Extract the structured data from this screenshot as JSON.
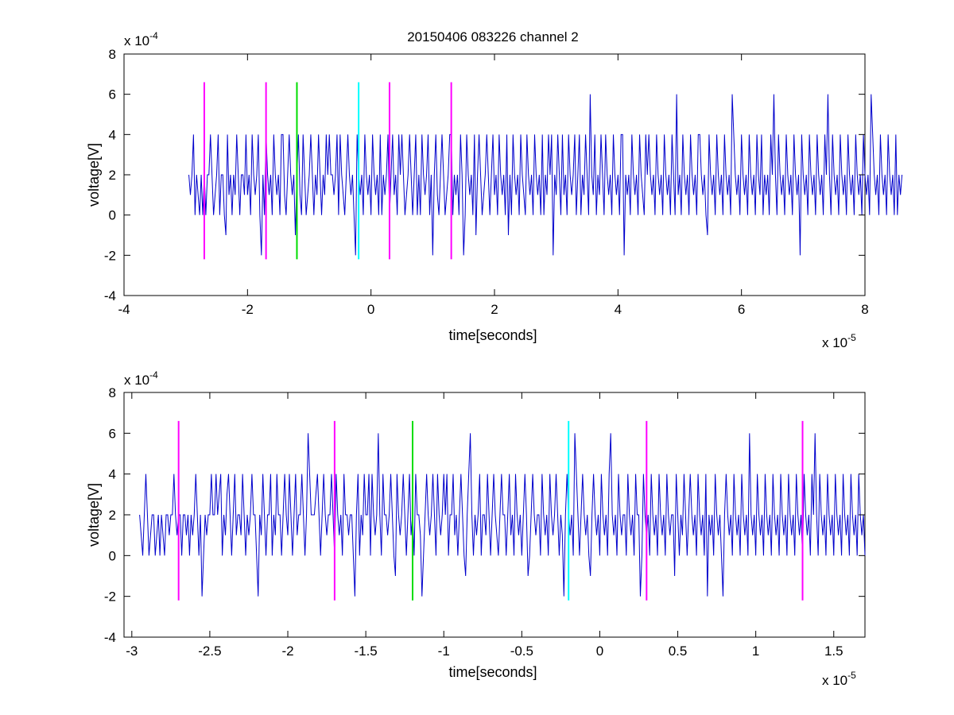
{
  "title": "20150406 083226 channel 2",
  "colors": {
    "signal": "#0000cc",
    "marker_magenta": "#ff00ff",
    "marker_green": "#00dd00",
    "marker_cyan": "#00ffff",
    "axes": "#000000"
  },
  "chart_data": [
    {
      "type": "line",
      "title": "20150406 083226 channel 2",
      "xlabel": "time[seconds]",
      "ylabel": "voltage[V]",
      "x_exponent": "x 10",
      "x_exponent_power": "-5",
      "y_exponent": "x 10",
      "y_exponent_power": "-4",
      "xlim": [
        -4,
        8
      ],
      "ylim": [
        -4,
        8
      ],
      "xticks": [
        -4,
        -2,
        0,
        2,
        4,
        6,
        8
      ],
      "xtick_labels": [
        "-4",
        "-2",
        "0",
        "2",
        "4",
        "6",
        "8"
      ],
      "yticks": [
        -4,
        -2,
        0,
        2,
        4,
        6,
        8
      ],
      "ytick_labels": [
        "-4",
        "-2",
        "0",
        "2",
        "4",
        "6",
        "8"
      ],
      "grid": false,
      "series": [
        {
          "x_start": -2.95,
          "x_step": 0.025,
          "values": [
            2,
            1,
            2,
            4,
            0,
            2,
            1,
            0,
            2,
            0,
            2,
            0,
            2,
            2,
            4,
            2,
            0,
            1,
            2,
            4,
            0,
            2,
            2,
            0,
            -1,
            4,
            1,
            2,
            0,
            2,
            1,
            4,
            2,
            0,
            2,
            2,
            1,
            4,
            1,
            2,
            0,
            4,
            2,
            1,
            2,
            4,
            0,
            -2,
            2,
            0,
            4,
            2,
            1,
            2,
            0,
            4,
            2,
            1,
            2,
            0,
            4,
            4,
            1,
            0,
            2,
            4,
            2,
            1,
            2,
            -1,
            2,
            4,
            1,
            0,
            4,
            2,
            0,
            1,
            2,
            4,
            2,
            0,
            2,
            1,
            4,
            2,
            0,
            2,
            1,
            4,
            2,
            4,
            2,
            2,
            1,
            2,
            4,
            0,
            4,
            2,
            1,
            0,
            2,
            4,
            2,
            1,
            2,
            0,
            -2,
            4,
            2,
            1,
            2,
            0,
            4,
            2,
            1,
            2,
            0,
            4,
            2,
            1,
            2,
            0,
            4,
            0,
            2,
            1,
            2,
            4,
            0,
            2,
            4,
            1,
            2,
            0,
            4,
            2,
            4,
            2,
            0,
            1,
            2,
            4,
            2,
            0,
            2,
            4,
            0,
            2,
            0,
            4,
            2,
            1,
            2,
            4,
            0,
            2,
            -2,
            2,
            4,
            1,
            0,
            2,
            4,
            2,
            0,
            1,
            2,
            4,
            4,
            0,
            2,
            1,
            2,
            0,
            4,
            2,
            -2,
            0,
            4,
            2,
            1,
            2,
            0,
            4,
            -1,
            2,
            4,
            2,
            0,
            1,
            2,
            4,
            2,
            0,
            2,
            4,
            1,
            2,
            0,
            4,
            2,
            1,
            2,
            0,
            4,
            -1,
            2,
            0,
            4,
            2,
            1,
            2,
            0,
            4,
            2,
            1,
            0,
            4,
            2,
            1,
            2,
            0,
            4,
            2,
            1,
            2,
            0,
            4,
            0,
            2,
            1,
            4,
            2,
            4,
            -2,
            2,
            1,
            4,
            2,
            0,
            4,
            1,
            2,
            0,
            4,
            2,
            1,
            2,
            4,
            0,
            2,
            4,
            0,
            2,
            1,
            4,
            2,
            0,
            6,
            2,
            1,
            4,
            0,
            2,
            1,
            4,
            2,
            0,
            4,
            2,
            1,
            2,
            0,
            4,
            2,
            1,
            2,
            0,
            4,
            4,
            -2,
            2,
            1,
            2,
            0,
            4,
            2,
            1,
            2,
            0,
            4,
            2,
            1,
            0,
            4,
            2,
            4,
            2,
            1,
            2,
            0,
            4,
            2,
            1,
            2,
            0,
            4,
            2,
            1,
            2,
            0,
            4,
            2,
            0,
            6,
            1,
            2,
            0,
            4,
            2,
            1,
            2,
            0,
            4,
            2,
            1,
            2,
            0,
            4,
            4,
            2,
            1,
            2,
            0,
            -1,
            4,
            2,
            1,
            2,
            0,
            4,
            2,
            1,
            2,
            0,
            4,
            2,
            1,
            2,
            0,
            6,
            4,
            2,
            1,
            2,
            0,
            4,
            2,
            1,
            2,
            0,
            4,
            2,
            1,
            2,
            0,
            4,
            2,
            1,
            4,
            0,
            2,
            1,
            2,
            0,
            4,
            2,
            6,
            2,
            0,
            4,
            2,
            1,
            2,
            0,
            4,
            2,
            1,
            2,
            0,
            4,
            2,
            1,
            2,
            -2,
            4,
            2,
            1,
            2,
            0,
            4,
            2,
            1,
            2,
            0,
            4,
            2,
            1,
            2,
            0,
            4,
            2,
            6,
            2,
            0,
            4,
            2,
            1,
            2,
            0,
            4,
            2,
            1,
            2,
            0,
            4,
            2,
            1,
            2,
            0,
            4,
            2,
            1,
            2,
            0,
            4,
            2,
            1,
            2,
            0,
            6,
            4,
            2,
            1,
            2,
            0,
            4,
            2,
            1,
            2,
            0,
            4,
            2,
            1,
            2,
            0,
            4,
            0,
            2,
            1,
            2
          ]
        }
      ],
      "markers": [
        {
          "x": -2.7,
          "color": "magenta"
        },
        {
          "x": -1.7,
          "color": "magenta"
        },
        {
          "x": -1.2,
          "color": "green"
        },
        {
          "x": -0.2,
          "color": "cyan"
        },
        {
          "x": 0.3,
          "color": "magenta"
        },
        {
          "x": 1.3,
          "color": "magenta"
        }
      ],
      "marker_range": [
        -2.2,
        6.6
      ]
    },
    {
      "type": "line",
      "xlabel": "time[seconds]",
      "ylabel": "voltage[V]",
      "x_exponent": "x 10",
      "x_exponent_power": "-5",
      "y_exponent": "x 10",
      "y_exponent_power": "-4",
      "xlim": [
        -3.05,
        1.7
      ],
      "ylim": [
        -4,
        8
      ],
      "xticks": [
        -3,
        -2.5,
        -2,
        -1.5,
        -1,
        -0.5,
        0,
        0.5,
        1,
        1.5
      ],
      "xtick_labels": [
        "-3",
        "-2.5",
        "-2",
        "-1.5",
        "-1",
        "-0.5",
        "0",
        "0.5",
        "1",
        "1.5"
      ],
      "yticks": [
        -4,
        -2,
        0,
        2,
        4,
        6,
        8
      ],
      "ytick_labels": [
        "-4",
        "-2",
        "0",
        "2",
        "4",
        "6",
        "8"
      ],
      "grid": false,
      "series": [
        {
          "x_start": -2.95,
          "x_step": 0.01,
          "values": [
            2,
            1,
            0,
            2,
            4,
            2,
            0,
            1,
            2,
            2,
            0,
            1,
            2,
            0,
            2,
            1,
            0,
            2,
            2,
            1,
            2,
            2,
            4,
            2,
            1,
            2,
            2,
            0,
            2,
            2,
            1,
            2,
            0,
            2,
            1,
            2,
            4,
            2,
            0,
            2,
            -2,
            0,
            2,
            1,
            2,
            2,
            4,
            2,
            2,
            4,
            2,
            3,
            4,
            0,
            2,
            1,
            3,
            4,
            2,
            0,
            2,
            4,
            1,
            2,
            2,
            1,
            4,
            2,
            0,
            2,
            1,
            2,
            4,
            2,
            2,
            0,
            -2,
            2,
            1,
            4,
            2,
            0,
            2,
            2,
            4,
            0,
            2,
            1,
            4,
            2,
            2,
            0,
            2,
            4,
            2,
            1,
            4,
            2,
            0,
            2,
            4,
            1,
            2,
            2,
            4,
            2,
            0,
            2,
            6,
            4,
            2,
            2,
            2,
            3,
            4,
            2,
            0,
            2,
            4,
            2,
            1,
            2,
            2,
            4,
            2,
            0,
            4,
            2,
            1,
            2,
            0,
            4,
            2,
            2,
            1,
            2,
            2,
            0,
            -2,
            2,
            4,
            0,
            2,
            1,
            4,
            2,
            2,
            4,
            0,
            4,
            2,
            1,
            2,
            6,
            2,
            0,
            4,
            2,
            2,
            1,
            2,
            4,
            2,
            0,
            -1,
            4,
            2,
            1,
            2,
            4,
            2,
            0,
            2,
            4,
            1,
            2,
            0,
            4,
            2,
            2,
            1,
            -2,
            0,
            2,
            4,
            2,
            1,
            2,
            4,
            2,
            0,
            4,
            2,
            1,
            2,
            4,
            2,
            4,
            0,
            2,
            2,
            4,
            1,
            2,
            0,
            2,
            4,
            2,
            0,
            -1,
            2,
            4,
            6,
            2,
            0,
            2,
            1,
            2,
            4,
            0,
            2,
            2,
            1,
            4,
            2,
            0,
            2,
            4,
            2,
            1,
            0,
            2,
            4,
            2,
            2,
            0,
            2,
            4,
            1,
            2,
            0,
            4,
            2,
            1,
            2,
            0,
            2,
            4,
            2,
            -1,
            0,
            2,
            4,
            2,
            1,
            2,
            2,
            0,
            4,
            2,
            1,
            2,
            0,
            4,
            2,
            1,
            2,
            4,
            2,
            0,
            2,
            1,
            -2,
            2,
            4,
            2,
            1,
            2,
            0,
            6,
            4,
            2,
            0,
            2,
            4,
            2,
            1,
            2,
            0,
            -1,
            2,
            4,
            2,
            1,
            2,
            0,
            4,
            2,
            1,
            2,
            0,
            4,
            6,
            2,
            1,
            2,
            0,
            4,
            2,
            1,
            2,
            2,
            0,
            4,
            2,
            1,
            2,
            0,
            4,
            2,
            2,
            -2,
            0,
            4,
            2,
            1,
            2,
            0,
            4,
            2,
            1,
            2,
            0,
            4,
            2,
            1,
            2,
            0,
            4,
            2,
            1,
            2,
            2,
            -1,
            4,
            2,
            0,
            2,
            1,
            4,
            2,
            0,
            2,
            4,
            2,
            1,
            2,
            0,
            4,
            2,
            1,
            2,
            0,
            4,
            -2,
            2,
            1,
            2,
            0,
            4,
            2,
            1,
            2,
            0,
            -2,
            2,
            4,
            2,
            1,
            2,
            0,
            4,
            2,
            1,
            2,
            0,
            4,
            2,
            1,
            2,
            0,
            6,
            2,
            1,
            2,
            0,
            4,
            2,
            1,
            2,
            0,
            4,
            2,
            1,
            2,
            0,
            4,
            2,
            1,
            2,
            0,
            4,
            2,
            1,
            2,
            0,
            4,
            2,
            1,
            2,
            0,
            4,
            2,
            1,
            2,
            0,
            4,
            2,
            1,
            2,
            0,
            4,
            2,
            6,
            2,
            0,
            4,
            2,
            1,
            2,
            0,
            4,
            2,
            1,
            2,
            0,
            4,
            2,
            1,
            2,
            0,
            4,
            2,
            1,
            2,
            0,
            4,
            2,
            1,
            2,
            0,
            4,
            2,
            1,
            2,
            0
          ]
        }
      ],
      "markers": [
        {
          "x": -2.7,
          "color": "magenta"
        },
        {
          "x": -1.7,
          "color": "magenta"
        },
        {
          "x": -1.2,
          "color": "green"
        },
        {
          "x": -0.2,
          "color": "cyan"
        },
        {
          "x": 0.3,
          "color": "magenta"
        },
        {
          "x": 1.3,
          "color": "magenta"
        }
      ],
      "marker_range": [
        -2.2,
        6.6
      ]
    }
  ]
}
